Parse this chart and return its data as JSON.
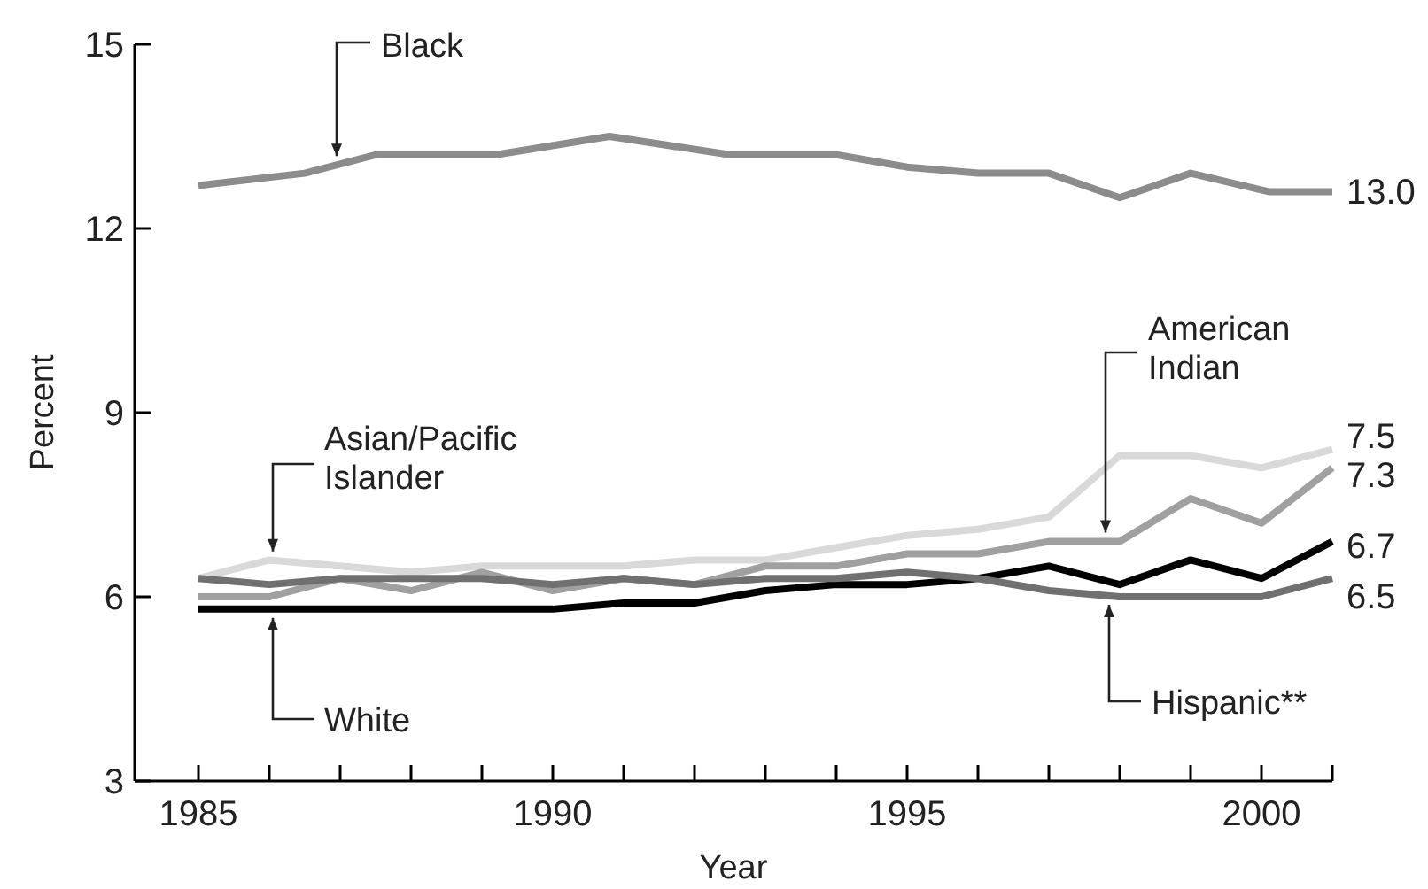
{
  "chart_data": {
    "type": "line",
    "xlabel": "Year",
    "ylabel": "Percent",
    "x": [
      1985,
      1986,
      1987,
      1988,
      1989,
      1990,
      1991,
      1992,
      1993,
      1994,
      1995,
      1996,
      1997,
      1998,
      1999,
      2000,
      2001
    ],
    "series": [
      {
        "name": "Black",
        "color": "#8c8c8c",
        "x": [
          1985,
          1986.5,
          1987.5,
          1989.2,
          1990.8,
          1992.5,
          1994,
          1995,
          1996,
          1997,
          1998,
          1999,
          2000.1,
          2001
        ],
        "values": [
          12.7,
          12.9,
          13.2,
          13.2,
          13.5,
          13.2,
          13.2,
          13.0,
          12.9,
          12.9,
          12.5,
          12.9,
          12.6,
          12.6
        ]
      },
      {
        "name": "Asian/Pacific Islander",
        "color": "#d9d9d9",
        "values": [
          6.3,
          6.6,
          6.5,
          6.4,
          6.5,
          6.5,
          6.5,
          6.6,
          6.6,
          6.8,
          7.0,
          7.1,
          7.3,
          8.3,
          8.3,
          8.1,
          8.4
        ]
      },
      {
        "name": "American Indian",
        "color": "#a0a0a0",
        "values": [
          6.0,
          6.0,
          6.3,
          6.1,
          6.4,
          6.1,
          6.3,
          6.2,
          6.5,
          6.5,
          6.7,
          6.7,
          6.9,
          6.9,
          7.6,
          7.2,
          8.1
        ]
      },
      {
        "name": "White",
        "color": "#000000",
        "values": [
          5.8,
          5.8,
          5.8,
          5.8,
          5.8,
          5.8,
          5.9,
          5.9,
          6.1,
          6.2,
          6.2,
          6.3,
          6.5,
          6.2,
          6.6,
          6.3,
          6.9
        ]
      },
      {
        "name": "Hispanic**",
        "color": "#707070",
        "values": [
          6.3,
          6.2,
          6.3,
          6.3,
          6.3,
          6.2,
          6.3,
          6.2,
          6.3,
          6.3,
          6.4,
          6.3,
          6.1,
          6.0,
          6.0,
          6.0,
          6.3
        ]
      }
    ],
    "annotations": [
      "13.0",
      "7.5",
      "7.3",
      "6.7",
      "6.5"
    ],
    "xlim": [
      1984.1,
      2001
    ],
    "xticks": [
      1985,
      {
        "value": 1986,
        "label": null
      },
      {
        "value": 1987,
        "label": null
      },
      {
        "value": 1988,
        "label": null
      },
      {
        "value": 1989,
        "label": null
      },
      1990,
      {
        "value": 1991,
        "label": null
      },
      {
        "value": 1992,
        "label": null
      },
      {
        "value": 1993,
        "label": null
      },
      {
        "value": 1994,
        "label": null
      },
      1995,
      {
        "value": 1996,
        "label": null
      },
      {
        "value": 1997,
        "label": null
      },
      {
        "value": 1998,
        "label": null
      },
      {
        "value": 1999,
        "label": null
      },
      2000,
      {
        "value": 2001,
        "label": null
      }
    ],
    "ylim": [
      3,
      15
    ],
    "yticks": [
      3,
      6,
      9,
      12,
      15
    ],
    "grid": false,
    "legend": false,
    "marker": "none",
    "line_style": "solid"
  }
}
